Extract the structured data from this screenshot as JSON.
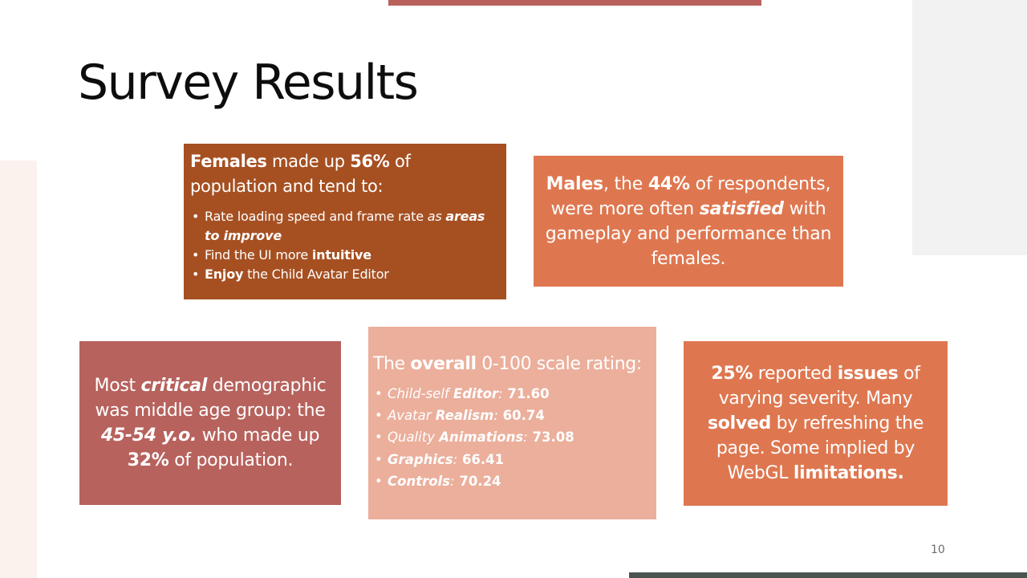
{
  "slide": {
    "title": "Survey Results",
    "number": "10"
  },
  "females_box": {
    "lead_bold_1": "Females",
    "lead_text_1": " made up ",
    "lead_bold_2": "56%",
    "lead_text_2": " of population and tend to:",
    "item1_text": "Rate loading speed and frame rate ",
    "item1_italic": "as",
    "item1_bolditalic": "areas to improve",
    "item2_text": "Find the UI more ",
    "item2_bold": "intuitive",
    "item3_bold": "Enjoy",
    "item3_text": " the Child Avatar Editor"
  },
  "males_box": {
    "bold_1": "Males",
    "text_1": ", the ",
    "bold_2": "44%",
    "text_2": " of respondents, were more often ",
    "bolditalic": "satisfied",
    "text_3": " with gameplay and performance than females."
  },
  "critical_box": {
    "text_1": "Most ",
    "bolditalic_1": "critical",
    "text_2": " demographic was middle age group: the ",
    "bolditalic_2": "45-54 y.o.",
    "text_3": " who made up ",
    "bold": "32%",
    "text_4": " of population."
  },
  "overall_box": {
    "lead_text_1": "The ",
    "lead_bold": "overall",
    "lead_text_2": " 0-100 scale rating:",
    "ratings": [
      {
        "italic": "Child-self ",
        "bold": "Editor",
        "colon": ":",
        "value": " 71.60"
      },
      {
        "italic": "Avatar ",
        "bold": "Realism",
        "colon": ":",
        "value": " 60.74"
      },
      {
        "italic": "Quality ",
        "bold": "Animations",
        "colon": ":",
        "value": " 73.08"
      },
      {
        "italic": "",
        "bold": "Graphics",
        "colon": ":",
        "value": " 66.41"
      },
      {
        "italic": "",
        "bold": "Controls",
        "colon": ":",
        "value": " 70.24"
      }
    ]
  },
  "issues_box": {
    "bold_1": "25%",
    "text_1": " reported ",
    "bold_2": "issues",
    "text_2": " of varying severity. Many ",
    "bold_3": "solved",
    "text_3": " by refreshing the page. Some implied by WebGL ",
    "bold_4": "limitations."
  },
  "colors": {
    "accent_rose": "#b7625d",
    "rust": "#a65022",
    "orange": "#de7750",
    "peach": "#ebaf9c",
    "bar_dark": "#4a5550"
  }
}
